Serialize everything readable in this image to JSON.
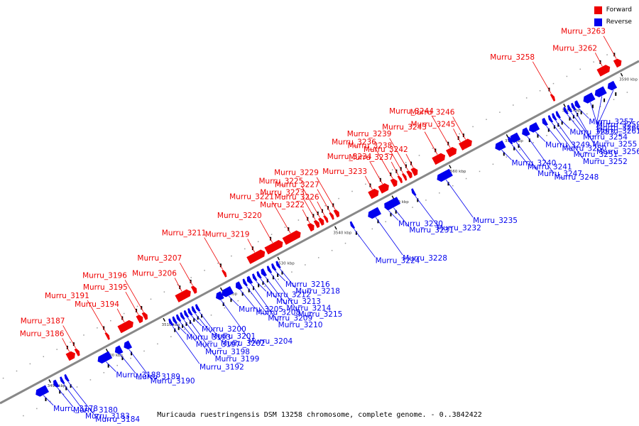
{
  "caption": "Muricauda ruestringensis DSM 13258 chromosome, complete genome. - 0..3842422",
  "legend": [
    {
      "label": "Forward",
      "color": "#ee0000"
    },
    {
      "label": "Reverse",
      "color": "#0000ee"
    }
  ],
  "colors": {
    "forward": "#ee0000",
    "reverse": "#0000ee",
    "axis": "#888888"
  },
  "ticks": [
    "3490 kbp",
    "3500 kbp",
    "3510 kbp",
    "3520 kbp",
    "3530 kbp",
    "3540 kbp",
    "3550 kbp",
    "3560 kbp",
    "3570 kbp",
    "3580 kbp",
    "3590 kbp"
  ],
  "forward_genes": [
    {
      "name": "Murru_3186",
      "t": 0.118,
      "len": 0.012
    },
    {
      "name": "Murru_3187",
      "t": 0.128,
      "len": 0.005
    },
    {
      "name": "Murru_3191",
      "t": 0.175,
      "len": 0.004
    },
    {
      "name": "Murru_3194",
      "t": 0.204,
      "len": 0.022
    },
    {
      "name": "Murru_3195",
      "t": 0.226,
      "len": 0.008
    },
    {
      "name": "Murru_3196",
      "t": 0.234,
      "len": 0.006
    },
    {
      "name": "Murru_3206",
      "t": 0.294,
      "len": 0.022
    },
    {
      "name": "Murru_3207",
      "t": 0.311,
      "len": 0.006
    },
    {
      "name": "Murru_3211",
      "t": 0.358,
      "len": 0.004
    },
    {
      "name": "Murru_3219",
      "t": 0.408,
      "len": 0.026
    },
    {
      "name": "Murru_3220",
      "t": 0.436,
      "len": 0.026
    },
    {
      "name": "Murru_3221",
      "t": 0.464,
      "len": 0.026
    },
    {
      "name": "Murru_3222",
      "t": 0.494,
      "len": 0.008
    },
    {
      "name": "Murru_3223",
      "t": 0.503,
      "len": 0.006
    },
    {
      "name": "Murru_3225",
      "t": 0.51,
      "len": 0.006
    },
    {
      "name": "Murru_3226",
      "t": 0.517,
      "len": 0.004
    },
    {
      "name": "Murru_3227",
      "t": 0.526,
      "len": 0.004
    },
    {
      "name": "Murru_3229",
      "t": 0.534,
      "len": 0.006
    },
    {
      "name": "Murru_3233",
      "t": 0.592,
      "len": 0.014
    },
    {
      "name": "Murru_3234",
      "t": 0.608,
      "len": 0.014
    },
    {
      "name": "Murru_3236",
      "t": 0.624,
      "len": 0.008
    },
    {
      "name": "Murru_3237",
      "t": 0.633,
      "len": 0.004
    },
    {
      "name": "Murru_3238",
      "t": 0.64,
      "len": 0.004
    },
    {
      "name": "Murru_3239",
      "t": 0.648,
      "len": 0.006
    },
    {
      "name": "Murru_3242",
      "t": 0.656,
      "len": 0.008
    },
    {
      "name": "Murru_3243",
      "t": 0.694,
      "len": 0.018
    },
    {
      "name": "Murru_3244",
      "t": 0.714,
      "len": 0.014
    },
    {
      "name": "Murru_3245",
      "t": 0.73,
      "len": 0.006
    },
    {
      "name": "Murru_3246",
      "t": 0.738,
      "len": 0.014
    },
    {
      "name": "Murru_3258",
      "t": 0.872,
      "len": 0.004
    },
    {
      "name": "Murru_3262",
      "t": 0.952,
      "len": 0.018
    },
    {
      "name": "Murru_3263",
      "t": 0.974,
      "len": 0.01
    }
  ],
  "reverse_genes": [
    {
      "name": "Murru_3178",
      "t": 0.058,
      "len": 0.018
    },
    {
      "name": "Murru_3180",
      "t": 0.08,
      "len": 0.006
    },
    {
      "name": "Murru_3183",
      "t": 0.09,
      "len": 0.004
    },
    {
      "name": "Murru_3184",
      "t": 0.097,
      "len": 0.004
    },
    {
      "name": "Murru_3188",
      "t": 0.156,
      "len": 0.02
    },
    {
      "name": "Murru_3189",
      "t": 0.178,
      "len": 0.01
    },
    {
      "name": "Murru_3190",
      "t": 0.192,
      "len": 0.01
    },
    {
      "name": "Murru_3192",
      "t": 0.26,
      "len": 0.004
    },
    {
      "name": "Murru_3193",
      "t": 0.266,
      "len": 0.004
    },
    {
      "name": "Murru_3197",
      "t": 0.272,
      "len": 0.004
    },
    {
      "name": "Murru_3198",
      "t": 0.278,
      "len": 0.004
    },
    {
      "name": "Murru_3199",
      "t": 0.284,
      "len": 0.004
    },
    {
      "name": "Murru_3200",
      "t": 0.29,
      "len": 0.004
    },
    {
      "name": "Murru_3201",
      "t": 0.296,
      "len": 0.004
    },
    {
      "name": "Murru_3202",
      "t": 0.302,
      "len": 0.004
    },
    {
      "name": "Murru_3204",
      "t": 0.336,
      "len": 0.01
    },
    {
      "name": "Murru_3205",
      "t": 0.348,
      "len": 0.016
    },
    {
      "name": "Murru_3208",
      "t": 0.366,
      "len": 0.008
    },
    {
      "name": "Murru_3209",
      "t": 0.376,
      "len": 0.004
    },
    {
      "name": "Murru_3210",
      "t": 0.383,
      "len": 0.006
    },
    {
      "name": "Murru_3212",
      "t": 0.391,
      "len": 0.004
    },
    {
      "name": "Murru_3213",
      "t": 0.398,
      "len": 0.004
    },
    {
      "name": "Murru_3214",
      "t": 0.405,
      "len": 0.006
    },
    {
      "name": "Murru_3215",
      "t": 0.414,
      "len": 0.004
    },
    {
      "name": "Murru_3216",
      "t": 0.421,
      "len": 0.004
    },
    {
      "name": "Murru_3218",
      "t": 0.428,
      "len": 0.004
    },
    {
      "name": "Murru_3224",
      "t": 0.544,
      "len": 0.004
    },
    {
      "name": "Murru_3228",
      "t": 0.578,
      "len": 0.018
    },
    {
      "name": "Murru_3230",
      "t": 0.598,
      "len": 0.006
    },
    {
      "name": "Murru_3231",
      "t": 0.606,
      "len": 0.022
    },
    {
      "name": "Murru_3232",
      "t": 0.64,
      "len": 0.004
    },
    {
      "name": "Murru_3235",
      "t": 0.688,
      "len": 0.022
    },
    {
      "name": "Murru_3240",
      "t": 0.775,
      "len": 0.014
    },
    {
      "name": "Murru_3241",
      "t": 0.791,
      "len": 0.004
    },
    {
      "name": "Murru_3247",
      "t": 0.798,
      "len": 0.014
    },
    {
      "name": "Murru_3248",
      "t": 0.815,
      "len": 0.01
    },
    {
      "name": "Murru_3249",
      "t": 0.828,
      "len": 0.014
    },
    {
      "name": "Murru_3250",
      "t": 0.845,
      "len": 0.006
    },
    {
      "name": "Murru_3251",
      "t": 0.854,
      "len": 0.004
    },
    {
      "name": "Murru_3252",
      "t": 0.86,
      "len": 0.004
    },
    {
      "name": "Murru_3253",
      "t": 0.866,
      "len": 0.004
    },
    {
      "name": "Murru_3254",
      "t": 0.878,
      "len": 0.004
    },
    {
      "name": "Murru_3255",
      "t": 0.884,
      "len": 0.004
    },
    {
      "name": "Murru_3256",
      "t": 0.89,
      "len": 0.004
    },
    {
      "name": "Murru_3257",
      "t": 0.896,
      "len": 0.006
    },
    {
      "name": "Murru_3259",
      "t": 0.914,
      "len": 0.016
    },
    {
      "name": "Murru_3260",
      "t": 0.932,
      "len": 0.016
    },
    {
      "name": "Murru_3261",
      "t": 0.95,
      "len": 0.012
    }
  ]
}
